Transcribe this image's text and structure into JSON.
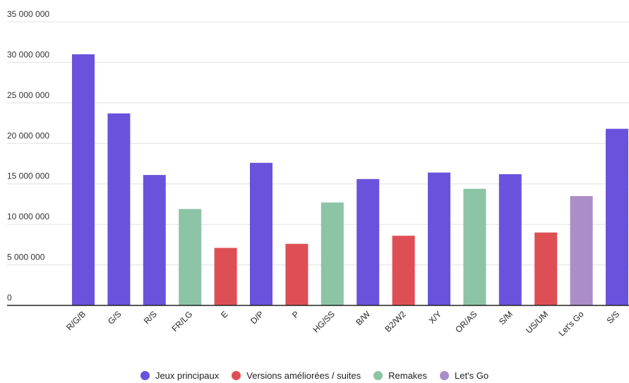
{
  "chart_data": {
    "type": "bar",
    "categories": [
      "R/G/B",
      "G/S",
      "R/S",
      "FR/LG",
      "E",
      "D/P",
      "P",
      "HG/SS",
      "B/W",
      "B2/W2",
      "X/Y",
      "OR/AS",
      "S/M",
      "US/UM",
      "Let's Go",
      "S/S"
    ],
    "values": [
      31000000,
      23700000,
      16100000,
      11900000,
      7100000,
      17600000,
      7600000,
      12700000,
      15600000,
      8600000,
      16400000,
      14400000,
      16200000,
      9000000,
      13500000,
      21800000
    ],
    "groups": [
      "Jeux principaux",
      "Jeux principaux",
      "Jeux principaux",
      "Remakes",
      "Versions améliorées / suites",
      "Jeux principaux",
      "Versions améliorées / suites",
      "Remakes",
      "Jeux principaux",
      "Versions améliorées / suites",
      "Jeux principaux",
      "Remakes",
      "Jeux principaux",
      "Versions améliorées / suites",
      "Let's Go",
      "Jeux principaux"
    ],
    "ylim": [
      0,
      35000000
    ],
    "yticks": [
      0,
      5000000,
      10000000,
      15000000,
      20000000,
      25000000,
      30000000,
      35000000
    ],
    "ytick_labels": [
      "0",
      "5 000 000",
      "10 000 000",
      "15 000 000",
      "20 000 000",
      "25 000 000",
      "30 000 000",
      "35 000 000"
    ],
    "grid": true,
    "legend_position": "bottom",
    "title": "",
    "xlabel": "",
    "ylabel": ""
  },
  "legend": [
    {
      "name": "Jeux principaux",
      "color": "#6b52dd"
    },
    {
      "name": "Versions améliorées / suites",
      "color": "#de4f55"
    },
    {
      "name": "Remakes",
      "color": "#8cc4a6"
    },
    {
      "name": "Let's Go",
      "color": "#ab8dc8"
    }
  ]
}
